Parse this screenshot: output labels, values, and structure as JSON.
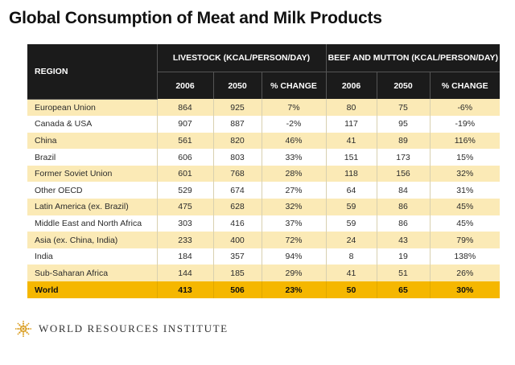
{
  "title": "Global Consumption of Meat and Milk Products",
  "table": {
    "region_header": "REGION",
    "group_headers": [
      "LIVESTOCK (KCAL/PERSON/DAY)",
      "BEEF AND MUTTON (KCAL/PERSON/DAY)"
    ],
    "sub_headers": [
      "2006",
      "2050",
      "% CHANGE",
      "2006",
      "2050",
      "% CHANGE"
    ],
    "rows": [
      {
        "region": "European Union",
        "values": [
          "864",
          "925",
          "7%",
          "80",
          "75",
          "-6%"
        ]
      },
      {
        "region": "Canada & USA",
        "values": [
          "907",
          "887",
          "-2%",
          "117",
          "95",
          "-19%"
        ]
      },
      {
        "region": "China",
        "values": [
          "561",
          "820",
          "46%",
          "41",
          "89",
          "116%"
        ]
      },
      {
        "region": "Brazil",
        "values": [
          "606",
          "803",
          "33%",
          "151",
          "173",
          "15%"
        ]
      },
      {
        "region": "Former Soviet Union",
        "values": [
          "601",
          "768",
          "28%",
          "118",
          "156",
          "32%"
        ]
      },
      {
        "region": "Other OECD",
        "values": [
          "529",
          "674",
          "27%",
          "64",
          "84",
          "31%"
        ]
      },
      {
        "region": "Latin America (ex. Brazil)",
        "values": [
          "475",
          "628",
          "32%",
          "59",
          "86",
          "45%"
        ]
      },
      {
        "region": "Middle East and North Africa",
        "values": [
          "303",
          "416",
          "37%",
          "59",
          "86",
          "45%"
        ]
      },
      {
        "region": "Asia (ex. China, India)",
        "values": [
          "233",
          "400",
          "72%",
          "24",
          "43",
          "79%"
        ]
      },
      {
        "region": "India",
        "values": [
          "184",
          "357",
          "94%",
          "8",
          "19",
          "138%"
        ]
      },
      {
        "region": "Sub-Saharan Africa",
        "values": [
          "144",
          "185",
          "29%",
          "41",
          "51",
          "26%"
        ]
      }
    ],
    "total": {
      "region": "World",
      "values": [
        "413",
        "506",
        "23%",
        "50",
        "65",
        "30%"
      ]
    }
  },
  "logo": {
    "icon": "wri-star-logo-icon",
    "text": "WORLD RESOURCES INSTITUTE",
    "color": "#d89a1a"
  },
  "colors": {
    "header_bg": "#1b1b1b",
    "row_highlight": "#fbeab6",
    "total_bg": "#f5b700"
  }
}
